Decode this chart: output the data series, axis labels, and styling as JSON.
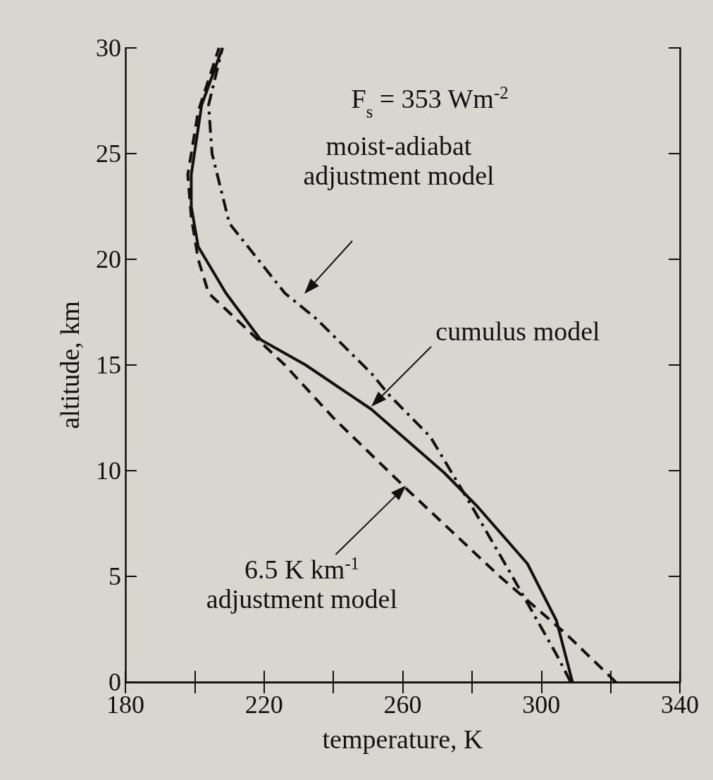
{
  "chart_data": {
    "type": "line",
    "xlabel": "temperature, K",
    "ylabel": "altitude, km",
    "xlim": [
      180,
      340
    ],
    "ylim": [
      0,
      30
    ],
    "xticks": [
      180,
      {
        "value": 200,
        "label": null
      },
      220,
      {
        "value": 240,
        "label": null
      },
      260,
      {
        "value": 280,
        "label": null
      },
      300,
      {
        "value": 320,
        "label": null
      },
      340
    ],
    "yticks": [
      0,
      5,
      10,
      15,
      20,
      25,
      30
    ],
    "grid": false,
    "marker": "none",
    "series": [
      {
        "color": "#111111",
        "line_style": "solid",
        "x": [
          309,
          304.4,
          296,
          281.6,
          272,
          251,
          232,
          219,
          209,
          201,
          199,
          199,
          202,
          208
        ],
        "values": [
          0,
          2.9,
          5.6,
          8.3,
          9.9,
          12.9,
          15,
          16.2,
          18.4,
          20.6,
          22.5,
          24,
          27.3,
          30
        ]
      },
      {
        "color": "#111111",
        "line_style": "dashed",
        "x": [
          321.5,
          307,
          288,
          262,
          240,
          226,
          215,
          204,
          201,
          199,
          198,
          201,
          207
        ],
        "values": [
          0,
          2.3,
          5,
          9,
          12.5,
          15,
          16.7,
          18.4,
          20,
          22,
          24,
          27,
          30
        ]
      },
      {
        "color": "#111111",
        "line_style": "dashdot",
        "x": [
          308.5,
          304.4,
          292,
          280,
          268,
          256,
          251,
          235,
          226,
          210,
          205,
          204,
          208
        ],
        "values": [
          0,
          1.3,
          4.9,
          8.3,
          11.6,
          13.6,
          14.6,
          17.2,
          18.4,
          21.7,
          25,
          27.3,
          30
        ]
      }
    ],
    "annotations": [
      "F$_{s}$ = 353 Wm$^{-2}$",
      "moist-adiabat\nadjustment model",
      "cumulus model",
      {
        "text": "6.5 K km$^{-1}$\nadjustment model",
        "x": 261,
        "y": 9.3
      }
    ]
  }
}
